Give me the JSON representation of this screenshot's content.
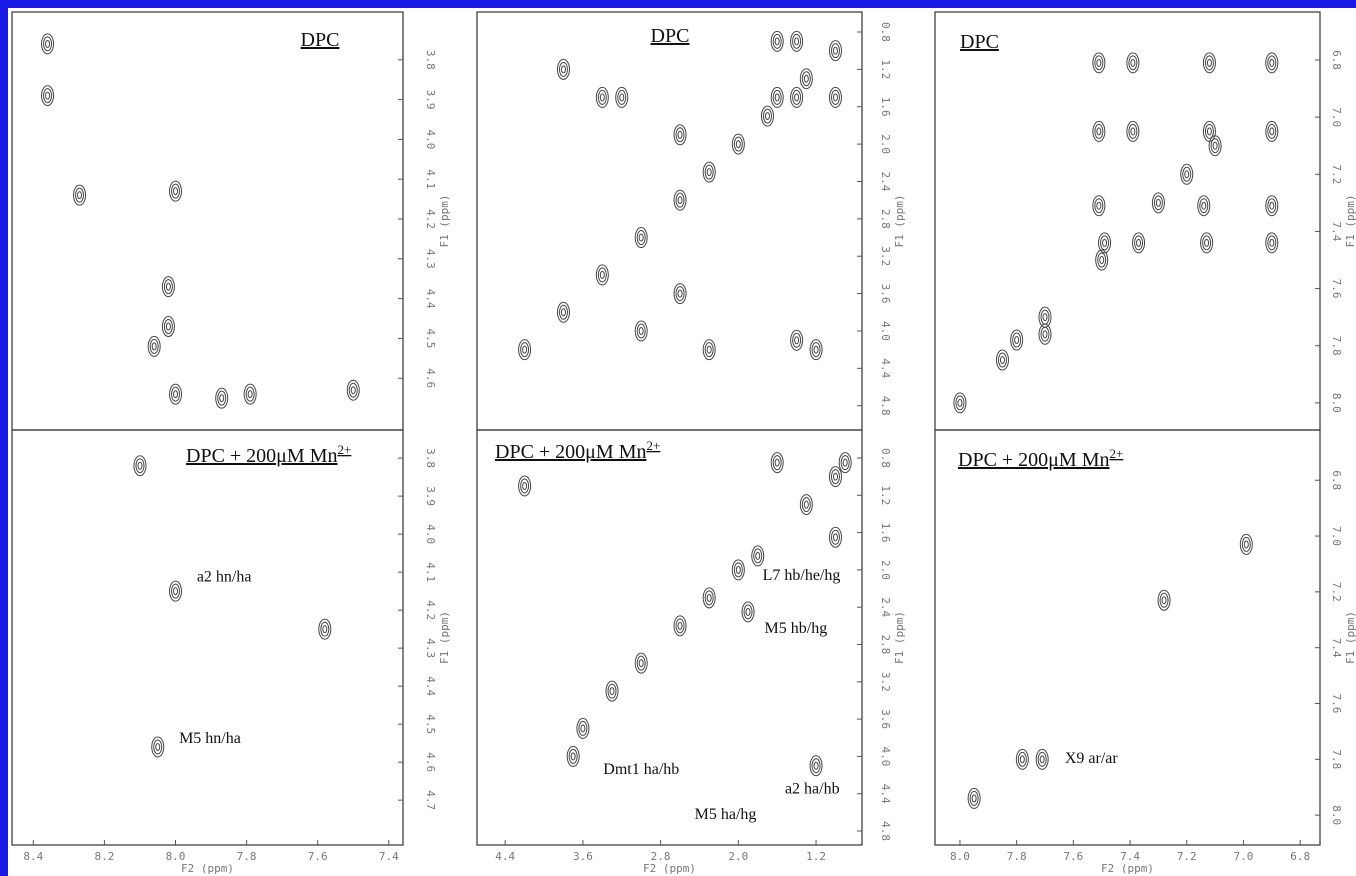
{
  "chart_data": [
    {
      "type": "contour",
      "title": "DPC",
      "ylabel": "F1 (ppm)",
      "xlim": [
        8.46,
        7.36
      ],
      "ylim": [
        3.68,
        4.73
      ],
      "yticks": [
        3.8,
        3.9,
        {
          "value": 4,
          "label": "4.0"
        },
        4.1,
        4.2,
        4.3,
        4.4,
        4.5,
        4.6
      ],
      "x": [
        8.36,
        8.36,
        8.27,
        8.0,
        8.02,
        8.02,
        8.06,
        8.0,
        7.79,
        7.5,
        7.87
      ],
      "y": [
        3.76,
        3.89,
        4.14,
        4.13,
        4.37,
        4.47,
        4.52,
        4.64,
        4.64,
        4.63,
        4.65
      ]
    },
    {
      "type": "contour",
      "title": "DPC",
      "ylabel": "F1 (ppm)",
      "xlim": [
        4.69,
        0.727
      ],
      "ylim": [
        0.586,
        5.06
      ],
      "yticks": [
        0.8,
        1.2,
        1.6,
        {
          "value": 2,
          "label": "2.0"
        },
        2.4,
        2.8,
        3.2,
        3.6,
        {
          "value": 4,
          "label": "4.0"
        },
        4.4,
        4.8
      ],
      "x": [
        4.2,
        3.8,
        3.4,
        3.0,
        2.6,
        2.3,
        2.0,
        1.7,
        1.3,
        1.0,
        1.6,
        1.4,
        1.6,
        1.4,
        1.0,
        3.8,
        3.4,
        3.2,
        2.6,
        2.3,
        3.0,
        1.4,
        1.2,
        2.6
      ],
      "y": [
        4.2,
        3.8,
        3.4,
        3.0,
        2.6,
        2.3,
        2.0,
        1.7,
        1.3,
        1.0,
        0.9,
        0.9,
        1.5,
        1.5,
        1.5,
        1.2,
        1.5,
        1.5,
        3.6,
        4.2,
        4.0,
        4.1,
        4.2,
        1.9
      ]
    },
    {
      "type": "contour",
      "title": "DPC",
      "ylabel": "F1 (ppm)",
      "xlim": [
        8.088,
        6.73
      ],
      "ylim": [
        6.632,
        8.095
      ],
      "yticks": [
        6.8,
        {
          "value": 7,
          "label": "7.0"
        },
        7.2,
        7.4,
        7.6,
        7.8,
        {
          "value": 8,
          "label": "8.0"
        }
      ],
      "x": [
        8.0,
        7.85,
        7.7,
        7.5,
        7.3,
        7.2,
        7.1,
        7.51,
        7.39,
        7.12,
        6.9,
        7.51,
        7.39,
        7.12,
        6.9,
        7.51,
        7.14,
        6.9,
        7.13,
        6.9,
        7.37,
        7.49,
        7.8,
        7.7
      ],
      "y": [
        8.0,
        7.85,
        7.7,
        7.5,
        7.3,
        7.2,
        7.1,
        6.81,
        6.81,
        6.81,
        6.81,
        7.05,
        7.05,
        7.05,
        7.05,
        7.31,
        7.31,
        7.31,
        7.44,
        7.44,
        7.44,
        7.44,
        7.78,
        7.76
      ]
    },
    {
      "type": "contour",
      "title": "DPC + 200μM Mn",
      "title_superscript": "2+",
      "xlabel": "F2 (ppm)",
      "ylabel": "F1 (ppm)",
      "xlim": [
        8.46,
        7.36
      ],
      "ylim": [
        3.726,
        4.818
      ],
      "xticks": [
        8.4,
        8.2,
        {
          "value": 8,
          "label": "8.0"
        },
        7.8,
        7.6,
        7.4
      ],
      "yticks": [
        3.8,
        3.9,
        {
          "value": 4,
          "label": "4.0"
        },
        4.1,
        4.2,
        4.3,
        4.4,
        4.5,
        4.6,
        4.7
      ],
      "x": [
        8.0,
        8.05,
        8.1,
        7.58
      ],
      "y": [
        4.15,
        4.56,
        3.82,
        4.25
      ],
      "annotations": [
        {
          "text": "a2 hn/ha",
          "x": 7.94,
          "y": 4.115
        },
        {
          "text": "M5 hn/ha",
          "x": 7.99,
          "y": 4.54
        }
      ]
    },
    {
      "type": "contour",
      "title": "DPC + 200μM Mn",
      "title_superscript": "2+",
      "xlabel": "F2 (ppm)",
      "ylabel": "F1 (ppm)",
      "xlim": [
        4.69,
        0.727
      ],
      "ylim": [
        0.5,
        4.95
      ],
      "xticks": [
        4.4,
        3.6,
        2.8,
        {
          "value": 2,
          "label": "2.0"
        },
        1.2
      ],
      "yticks": [
        0.8,
        1.2,
        1.6,
        {
          "value": 2,
          "label": "2.0"
        },
        2.4,
        2.8,
        3.2,
        3.6,
        {
          "value": 4,
          "label": "4.0"
        },
        4.4,
        4.8
      ],
      "x": [
        3.6,
        3.3,
        3.0,
        2.6,
        2.3,
        2.0,
        1.8,
        1.3,
        1.0,
        0.9,
        4.2,
        3.7,
        1.2,
        1.6,
        1.0,
        1.9
      ],
      "y": [
        3.7,
        3.3,
        3.0,
        2.6,
        2.3,
        2.0,
        1.85,
        1.3,
        1.0,
        0.85,
        1.1,
        4.0,
        4.1,
        0.85,
        1.65,
        2.45
      ],
      "annotations": [
        {
          "text": "L7 hb/he/hg",
          "x": 1.75,
          "y": 2.07
        },
        {
          "text": "M5 hb/hg",
          "x": 1.73,
          "y": 2.64
        },
        {
          "text": "Dmt1 ha/hb",
          "x": 3.39,
          "y": 4.15
        },
        {
          "text": "a2 ha/hb",
          "x": 1.52,
          "y": 4.36
        },
        {
          "text": "M5 ha/hg",
          "x": 2.45,
          "y": 4.63
        }
      ]
    },
    {
      "type": "contour",
      "title": "DPC + 200μM Mn",
      "title_superscript": "2+",
      "xlabel": "F2 (ppm)",
      "ylabel": "F1 (ppm)",
      "xlim": [
        8.088,
        6.73
      ],
      "ylim": [
        6.62,
        8.107
      ],
      "xticks": [
        {
          "value": 8,
          "label": "8.0"
        },
        7.8,
        7.6,
        7.4,
        7.2,
        {
          "value": 7,
          "label": "7.0"
        },
        6.8
      ],
      "yticks": [
        6.8,
        {
          "value": 7,
          "label": "7.0"
        },
        7.2,
        7.4,
        7.6,
        7.8,
        {
          "value": 8,
          "label": "8.0"
        }
      ],
      "x": [
        7.28,
        7.71,
        7.78,
        7.95,
        6.99
      ],
      "y": [
        7.23,
        7.8,
        7.8,
        7.94,
        7.03
      ],
      "annotations": [
        {
          "text": "X9 ar/ar",
          "x": 7.63,
          "y": 7.8
        }
      ]
    }
  ]
}
